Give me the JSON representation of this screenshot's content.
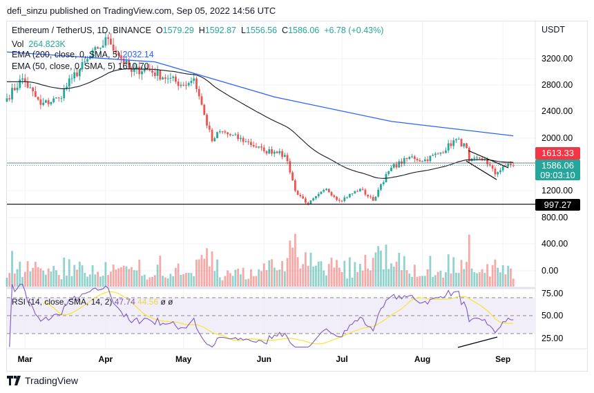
{
  "header": {
    "publisher": "defi_sinzu published on TradingView.com, Sep 05, 2022 14:56 UTC"
  },
  "legend": {
    "symbol": "Ethereum / TetherUS, 1D, BINANCE",
    "o_label": "O",
    "o": "1579.29",
    "h_label": "H",
    "h": "1592.87",
    "l_label": "L",
    "l": "1556.56",
    "c_label": "C",
    "c": "1586.06",
    "change": "+6.78 (+0.43%)",
    "vol_label": "Vol",
    "vol": "264.823K",
    "ema200_label": "EMA (200, close, 0, SMA, 5)",
    "ema200": "2032.14",
    "ema50_label": "EMA (50, close, 0, SMA, 5)",
    "ema50": "1610.70",
    "rsi_label": "RSI (14, close, SMA, 14, 2)",
    "rsi": "47.74",
    "rsi_sma": "44.56",
    "rsi_extra1": "ø",
    "rsi_extra2": "ø"
  },
  "axis": {
    "currency": "USDT",
    "price_ticks": [
      "3200.00",
      "2800.00",
      "2400.00",
      "2000.00",
      "1200.00",
      "800.00",
      "400.00",
      "0.00"
    ],
    "rsi_ticks": [
      "75.00",
      "50.00",
      "25.00"
    ],
    "months": [
      "Mar",
      "Apr",
      "May",
      "Jun",
      "Jul",
      "Aug",
      "Sep"
    ]
  },
  "tags": {
    "ema50": "1613.33",
    "last": "1586.06",
    "countdown": "09:03:10",
    "support": "997.27"
  },
  "colors": {
    "up": "#26a69a",
    "down": "#ef5350",
    "ema200": "#2962ff",
    "ema50": "#131722",
    "rsi": "#7e57c2",
    "rsi_sma": "#f5e642",
    "rsi_bg": "#ede7f6"
  },
  "footer": {
    "brand": "TradingView"
  },
  "chart_data": {
    "type": "candlestick",
    "symbol": "ETHUSDT 1D",
    "close_keypoints": [
      {
        "date": "2022-02-22",
        "close": 2600
      },
      {
        "date": "2022-02-28",
        "close": 2900
      },
      {
        "date": "2022-03-07",
        "close": 2500
      },
      {
        "date": "2022-03-14",
        "close": 2600
      },
      {
        "date": "2022-03-19",
        "close": 2900
      },
      {
        "date": "2022-03-29",
        "close": 3350
      },
      {
        "date": "2022-04-02",
        "close": 3500
      },
      {
        "date": "2022-04-07",
        "close": 3200
      },
      {
        "date": "2022-04-11",
        "close": 3000
      },
      {
        "date": "2022-04-16",
        "close": 3050
      },
      {
        "date": "2022-04-25",
        "close": 2900
      },
      {
        "date": "2022-05-01",
        "close": 2800
      },
      {
        "date": "2022-05-05",
        "close": 2900
      },
      {
        "date": "2022-05-09",
        "close": 2350
      },
      {
        "date": "2022-05-12",
        "close": 1950
      },
      {
        "date": "2022-05-15",
        "close": 2100
      },
      {
        "date": "2022-05-25",
        "close": 1950
      },
      {
        "date": "2022-06-01",
        "close": 1800
      },
      {
        "date": "2022-06-07",
        "close": 1800
      },
      {
        "date": "2022-06-10",
        "close": 1650
      },
      {
        "date": "2022-06-13",
        "close": 1200
      },
      {
        "date": "2022-06-18",
        "close": 1000
      },
      {
        "date": "2022-06-25",
        "close": 1230
      },
      {
        "date": "2022-06-30",
        "close": 1050
      },
      {
        "date": "2022-07-08",
        "close": 1230
      },
      {
        "date": "2022-07-13",
        "close": 1050
      },
      {
        "date": "2022-07-16",
        "close": 1300
      },
      {
        "date": "2022-07-20",
        "close": 1550
      },
      {
        "date": "2022-07-28",
        "close": 1720
      },
      {
        "date": "2022-08-01",
        "close": 1650
      },
      {
        "date": "2022-08-08",
        "close": 1780
      },
      {
        "date": "2022-08-14",
        "close": 1980
      },
      {
        "date": "2022-08-18",
        "close": 1850
      },
      {
        "date": "2022-08-19",
        "close": 1650
      },
      {
        "date": "2022-08-25",
        "close": 1680
      },
      {
        "date": "2022-08-29",
        "close": 1450
      },
      {
        "date": "2022-09-01",
        "close": 1570
      },
      {
        "date": "2022-09-05",
        "close": 1586.06
      }
    ],
    "ema200_keypoints": [
      {
        "date": "2022-02-22",
        "value": 3300
      },
      {
        "date": "2022-04-20",
        "value": 3150
      },
      {
        "date": "2022-06-05",
        "value": 2620
      },
      {
        "date": "2022-07-20",
        "value": 2250
      },
      {
        "date": "2022-09-05",
        "value": 2032.14
      }
    ],
    "horizontal_levels": [
      997.27,
      1613.33
    ],
    "price_range": [
      700,
      3700
    ],
    "rsi_levels": [
      70,
      50,
      30
    ]
  }
}
